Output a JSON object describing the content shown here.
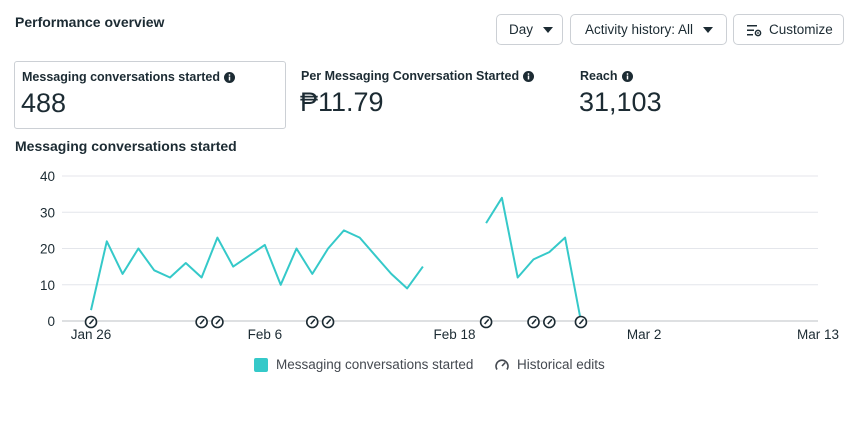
{
  "header": {
    "title": "Performance overview",
    "day_label": "Day",
    "activity_label": "Activity history: All",
    "customize_label": "Customize"
  },
  "metrics": [
    {
      "label": "Messaging conversations started",
      "value": "488"
    },
    {
      "label": "Per Messaging Conversation Started",
      "value": "₱11.79"
    },
    {
      "label": "Reach",
      "value": "31,103"
    }
  ],
  "section_title": "Messaging conversations started",
  "chart_data": {
    "type": "line",
    "title": "Messaging conversations started",
    "xlabel": "",
    "ylabel": "",
    "ylim": [
      0,
      40
    ],
    "yticks": [
      0,
      10,
      20,
      30,
      40
    ],
    "x_tick_labels": [
      {
        "label": "Jan 26",
        "day": 0
      },
      {
        "label": "Feb 6",
        "day": 11
      },
      {
        "label": "Feb 18",
        "day": 23
      },
      {
        "label": "Mar 2",
        "day": 35
      },
      {
        "label": "Mar 13",
        "day": 46
      }
    ],
    "x_range": [
      0,
      46
    ],
    "series": [
      {
        "name": "Messaging conversations started",
        "color": "#35c9c9",
        "segments": [
          {
            "start_day": 0,
            "values": [
              3,
              22,
              13,
              20,
              14,
              12,
              16,
              12,
              23,
              15,
              18,
              21,
              10,
              20,
              13,
              20,
              25,
              23,
              18,
              13,
              9,
              15
            ]
          },
          {
            "start_day": 25,
            "values": [
              27,
              34,
              12,
              17,
              19,
              23,
              0
            ]
          }
        ]
      }
    ],
    "historical_edit_days": [
      0,
      7,
      8,
      14,
      15,
      25,
      28,
      29,
      31
    ],
    "legend": [
      {
        "label": "Messaging conversations started",
        "marker": "teal-square"
      },
      {
        "label": "Historical edits",
        "marker": "gauge-icon"
      }
    ]
  }
}
